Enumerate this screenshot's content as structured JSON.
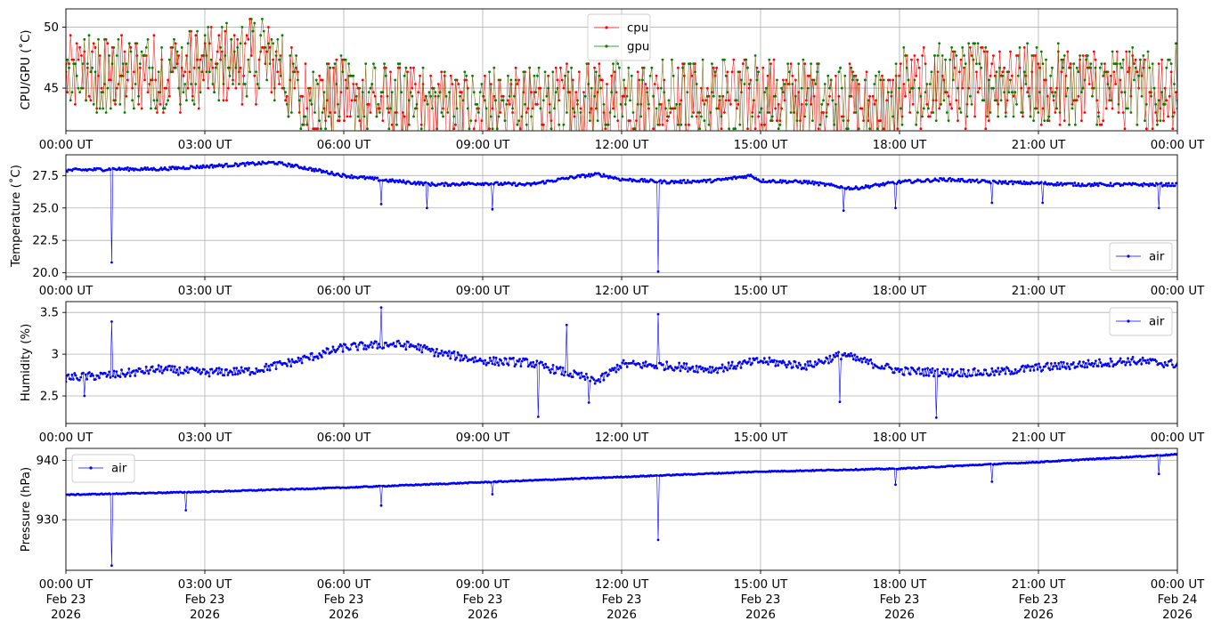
{
  "chart_data": [
    {
      "type": "line",
      "ylabel": "CPU/GPU (˚C)",
      "xlim": [
        "2026-02-23 00:00",
        "2026-02-24 00:00"
      ],
      "ylim": [
        41.5,
        51.5
      ],
      "yticks": [
        45,
        50
      ],
      "grid": true,
      "legend": "top-center",
      "series": [
        {
          "name": "cpu",
          "color": "#ff0000",
          "x_hours": [
            0,
            1,
            2,
            3,
            4,
            4.5,
            5,
            6,
            7,
            8,
            9,
            10,
            11,
            12,
            13,
            14,
            15,
            16,
            17,
            17.9,
            18,
            19,
            20,
            21,
            22,
            23,
            24
          ],
          "values": [
            46.0,
            46.1,
            46.3,
            46.5,
            47.2,
            47.0,
            44.4,
            44.0,
            43.7,
            43.2,
            43.4,
            43.5,
            43.6,
            43.8,
            43.9,
            44.1,
            44.3,
            44.0,
            43.6,
            43.5,
            45.0,
            45.1,
            45.0,
            45.0,
            44.9,
            44.8,
            44.9
          ]
        },
        {
          "name": "gpu",
          "color": "#008000",
          "x_hours": [
            0,
            1,
            2,
            3,
            4,
            4.5,
            5,
            6,
            7,
            8,
            9,
            10,
            11,
            12,
            13,
            14,
            15,
            16,
            17,
            17.9,
            18,
            19,
            20,
            21,
            22,
            23,
            24
          ],
          "values": [
            46.2,
            46.3,
            46.6,
            46.9,
            47.6,
            47.4,
            44.8,
            44.3,
            43.9,
            43.4,
            43.6,
            43.7,
            43.8,
            44.0,
            44.1,
            44.3,
            44.5,
            44.2,
            43.8,
            43.7,
            45.3,
            45.4,
            45.3,
            45.3,
            45.2,
            45.1,
            45.2
          ]
        }
      ],
      "jitter_amplitude": 3.4
    },
    {
      "type": "line",
      "ylabel": "Temperature (˚C)",
      "xlim": [
        "2026-02-23 00:00",
        "2026-02-24 00:00"
      ],
      "ylim": [
        19.7,
        29.1
      ],
      "yticks": [
        20.0,
        22.5,
        25.0,
        27.5
      ],
      "grid": true,
      "legend": "bottom-right",
      "series": [
        {
          "name": "air",
          "color": "#0000ff",
          "x_hours": [
            0,
            1,
            2,
            3,
            4,
            4.5,
            5,
            6,
            7,
            8,
            9,
            10,
            11,
            11.5,
            12,
            13,
            14,
            14.8,
            15,
            16,
            17,
            18,
            19,
            20,
            21,
            22,
            23,
            24
          ],
          "values": [
            27.9,
            28.0,
            28.0,
            28.2,
            28.4,
            28.5,
            28.2,
            27.5,
            27.1,
            26.8,
            26.9,
            26.8,
            27.4,
            27.6,
            27.2,
            27.0,
            27.1,
            27.5,
            27.1,
            27.0,
            26.5,
            27.0,
            27.2,
            27.0,
            26.9,
            26.8,
            26.8,
            26.8
          ],
          "outliers": [
            [
              1.0,
              20.8
            ],
            [
              12.8,
              20.1
            ],
            [
              6.8,
              25.3
            ],
            [
              7.8,
              25.0
            ],
            [
              9.2,
              24.9
            ],
            [
              16.8,
              24.8
            ],
            [
              17.9,
              25.0
            ],
            [
              20.0,
              25.4
            ],
            [
              21.1,
              25.4
            ],
            [
              23.6,
              25.0
            ]
          ]
        }
      ],
      "jitter_amplitude": 0.12
    },
    {
      "type": "line",
      "ylabel": "Humidity (%)",
      "xlim": [
        "2026-02-23 00:00",
        "2026-02-24 00:00"
      ],
      "ylim": [
        2.17,
        3.63
      ],
      "yticks": [
        2.5,
        3.0,
        3.5
      ],
      "grid": true,
      "legend": "top-right",
      "series": [
        {
          "name": "air",
          "color": "#0000ff",
          "x_hours": [
            0,
            1,
            2,
            3,
            4,
            5,
            6,
            7,
            7.5,
            8,
            9,
            10,
            11,
            11.5,
            12,
            13,
            14,
            15,
            16,
            16.8,
            17,
            18,
            19,
            20,
            21,
            22,
            23,
            24
          ],
          "values": [
            2.72,
            2.75,
            2.82,
            2.78,
            2.8,
            2.92,
            3.08,
            3.12,
            3.1,
            3.02,
            2.92,
            2.9,
            2.75,
            2.68,
            2.88,
            2.86,
            2.82,
            2.92,
            2.86,
            3.0,
            2.95,
            2.8,
            2.78,
            2.78,
            2.84,
            2.88,
            2.92,
            2.88
          ],
          "outliers": [
            [
              1.0,
              3.39
            ],
            [
              6.8,
              3.56
            ],
            [
              12.8,
              3.48
            ],
            [
              10.2,
              2.25
            ],
            [
              11.3,
              2.42
            ],
            [
              16.7,
              2.43
            ],
            [
              18.8,
              2.24
            ],
            [
              10.8,
              3.35
            ],
            [
              0.4,
              2.5
            ]
          ]
        }
      ],
      "jitter_amplitude": 0.05
    },
    {
      "type": "line",
      "ylabel": "Pressure (hPa)",
      "xlim": [
        "2026-02-23 00:00",
        "2026-02-24 00:00"
      ],
      "ylim": [
        921.5,
        942.0
      ],
      "yticks": [
        930,
        940
      ],
      "grid": true,
      "legend": "top-left",
      "series": [
        {
          "name": "air",
          "color": "#0000ff",
          "x_hours": [
            0,
            3,
            6,
            9,
            12,
            15,
            18,
            21,
            24
          ],
          "values": [
            934.2,
            934.7,
            935.4,
            936.3,
            937.2,
            938.1,
            938.6,
            939.7,
            941.0
          ],
          "outliers": [
            [
              1.0,
              922.3
            ],
            [
              12.8,
              926.6
            ],
            [
              2.6,
              931.6
            ],
            [
              6.8,
              932.4
            ],
            [
              9.2,
              934.3
            ],
            [
              17.9,
              935.9
            ],
            [
              20.0,
              936.4
            ],
            [
              23.6,
              937.7
            ]
          ]
        }
      ],
      "jitter_amplitude": 0.08
    }
  ],
  "x_axis": {
    "tick_labels": [
      "00:00 UT",
      "03:00 UT",
      "06:00 UT",
      "09:00 UT",
      "12:00 UT",
      "15:00 UT",
      "18:00 UT",
      "21:00 UT",
      "00:00 UT"
    ],
    "date_labels": [
      "Feb 23",
      "Feb 23",
      "Feb 23",
      "Feb 23",
      "Feb 23",
      "Feb 23",
      "Feb 23",
      "Feb 23",
      "Feb 24"
    ],
    "year_labels": [
      "2026",
      "2026",
      "2026",
      "2026",
      "2026",
      "2026",
      "2026",
      "2026",
      "2026"
    ]
  }
}
